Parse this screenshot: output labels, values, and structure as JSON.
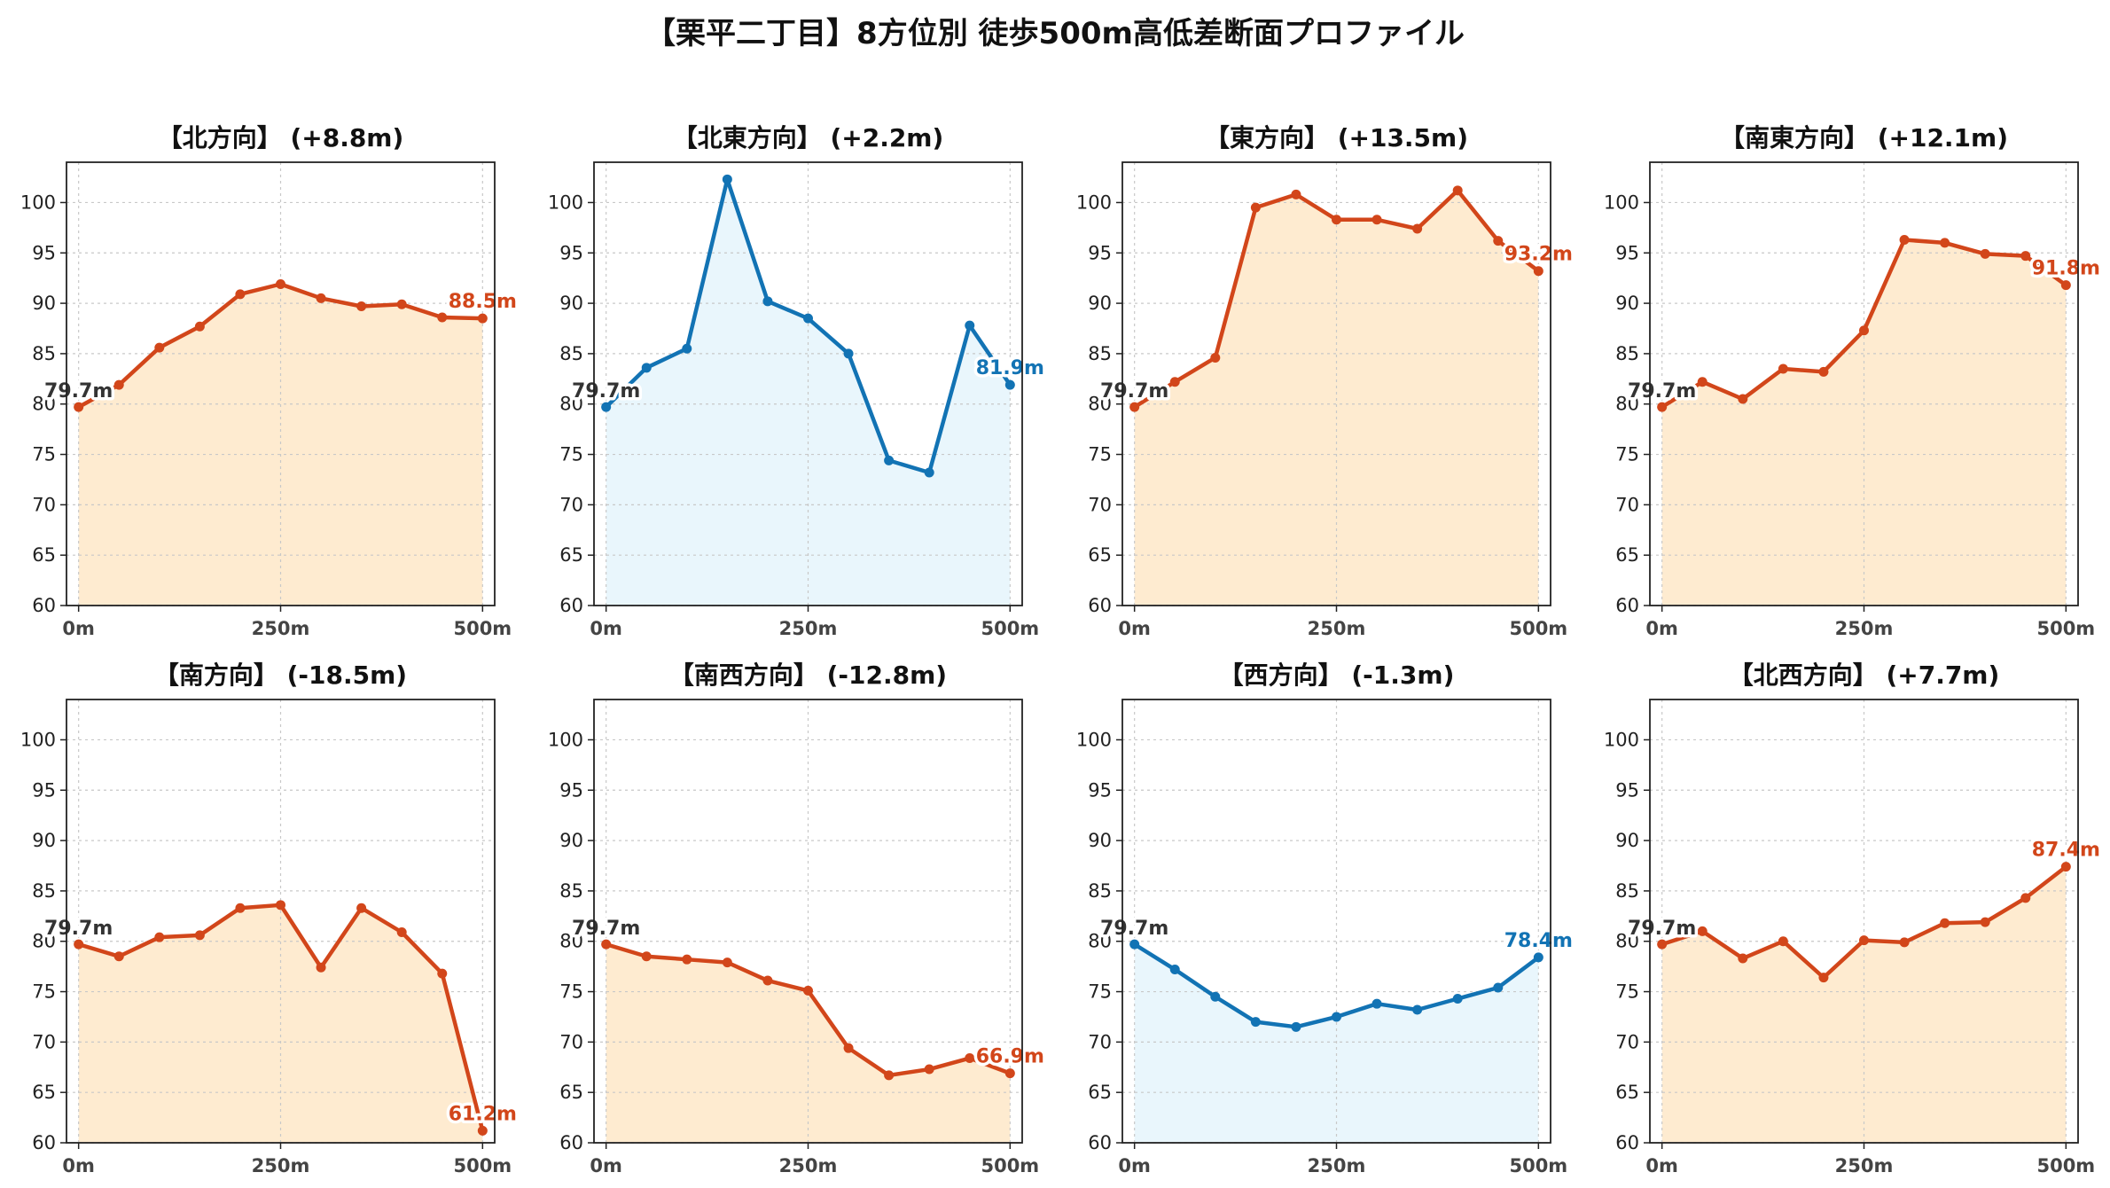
{
  "suptitle": "【栗平二丁目】8方位別 徒歩500m高低差断面プロファイル",
  "colors": {
    "up_line": "#d2461a",
    "up_fill": "#feebd0",
    "down_line": "#1273b4",
    "down_fill": "#e9f6fc",
    "grid": "#c8c8c8",
    "start_label": "#333333"
  },
  "chart_data": [
    {
      "type": "line",
      "title": "【北方向】 (+8.8m)",
      "trend": "up",
      "x": [
        0,
        50,
        100,
        150,
        200,
        250,
        300,
        350,
        400,
        450,
        500
      ],
      "values": [
        79.7,
        81.9,
        85.6,
        87.7,
        90.9,
        91.9,
        90.5,
        89.7,
        89.9,
        88.6,
        88.5
      ],
      "start_label": "79.7m",
      "end_label": "88.5m",
      "xticks": [
        "0m",
        "250m",
        "500m"
      ],
      "ylim": [
        60,
        104
      ],
      "yticks": [
        60,
        65,
        70,
        75,
        80,
        85,
        90,
        95,
        100
      ],
      "grid": true
    },
    {
      "type": "line",
      "title": "【北東方向】 (+2.2m)",
      "trend": "down",
      "x": [
        0,
        50,
        100,
        150,
        200,
        250,
        300,
        350,
        400,
        450,
        500
      ],
      "values": [
        79.7,
        83.6,
        85.5,
        102.3,
        90.2,
        88.5,
        85.0,
        74.4,
        73.2,
        87.8,
        81.9
      ],
      "start_label": "79.7m",
      "end_label": "81.9m",
      "xticks": [
        "0m",
        "250m",
        "500m"
      ],
      "ylim": [
        60,
        104
      ],
      "yticks": [
        60,
        65,
        70,
        75,
        80,
        85,
        90,
        95,
        100
      ],
      "grid": true
    },
    {
      "type": "line",
      "title": "【東方向】 (+13.5m)",
      "trend": "up",
      "x": [
        0,
        50,
        100,
        150,
        200,
        250,
        300,
        350,
        400,
        450,
        500
      ],
      "values": [
        79.7,
        82.2,
        84.6,
        99.5,
        100.8,
        98.3,
        98.3,
        97.4,
        101.2,
        96.2,
        93.2
      ],
      "start_label": "79.7m",
      "end_label": "93.2m",
      "xticks": [
        "0m",
        "250m",
        "500m"
      ],
      "ylim": [
        60,
        104
      ],
      "yticks": [
        60,
        65,
        70,
        75,
        80,
        85,
        90,
        95,
        100
      ],
      "grid": true
    },
    {
      "type": "line",
      "title": "【南東方向】 (+12.1m)",
      "trend": "up",
      "x": [
        0,
        50,
        100,
        150,
        200,
        250,
        300,
        350,
        400,
        450,
        500
      ],
      "values": [
        79.7,
        82.2,
        80.5,
        83.5,
        83.2,
        87.3,
        96.3,
        96.0,
        94.9,
        94.7,
        91.8
      ],
      "start_label": "79.7m",
      "end_label": "91.8m",
      "xticks": [
        "0m",
        "250m",
        "500m"
      ],
      "ylim": [
        60,
        104
      ],
      "yticks": [
        60,
        65,
        70,
        75,
        80,
        85,
        90,
        95,
        100
      ],
      "grid": true
    },
    {
      "type": "line",
      "title": "【南方向】 (-18.5m)",
      "trend": "up",
      "x": [
        0,
        50,
        100,
        150,
        200,
        250,
        300,
        350,
        400,
        450,
        500
      ],
      "values": [
        79.7,
        78.5,
        80.4,
        80.6,
        83.3,
        83.6,
        77.4,
        83.3,
        80.9,
        76.8,
        61.2
      ],
      "start_label": "79.7m",
      "end_label": "61.2m",
      "xticks": [
        "0m",
        "250m",
        "500m"
      ],
      "ylim": [
        60,
        104
      ],
      "yticks": [
        60,
        65,
        70,
        75,
        80,
        85,
        90,
        95,
        100
      ],
      "grid": true
    },
    {
      "type": "line",
      "title": "【南西方向】 (-12.8m)",
      "trend": "up",
      "x": [
        0,
        50,
        100,
        150,
        200,
        250,
        300,
        350,
        400,
        450,
        500
      ],
      "values": [
        79.7,
        78.5,
        78.2,
        77.9,
        76.1,
        75.1,
        69.4,
        66.7,
        67.3,
        68.4,
        66.9
      ],
      "start_label": "79.7m",
      "end_label": "66.9m",
      "xticks": [
        "0m",
        "250m",
        "500m"
      ],
      "ylim": [
        60,
        104
      ],
      "yticks": [
        60,
        65,
        70,
        75,
        80,
        85,
        90,
        95,
        100
      ],
      "grid": true
    },
    {
      "type": "line",
      "title": "【西方向】 (-1.3m)",
      "trend": "down",
      "x": [
        0,
        50,
        100,
        150,
        200,
        250,
        300,
        350,
        400,
        450,
        500
      ],
      "values": [
        79.7,
        77.2,
        74.5,
        72.0,
        71.5,
        72.5,
        73.8,
        73.2,
        74.3,
        75.4,
        78.4
      ],
      "start_label": "79.7m",
      "end_label": "78.4m",
      "xticks": [
        "0m",
        "250m",
        "500m"
      ],
      "ylim": [
        60,
        104
      ],
      "yticks": [
        60,
        65,
        70,
        75,
        80,
        85,
        90,
        95,
        100
      ],
      "grid": true
    },
    {
      "type": "line",
      "title": "【北西方向】 (+7.7m)",
      "trend": "up",
      "x": [
        0,
        50,
        100,
        150,
        200,
        250,
        300,
        350,
        400,
        450,
        500
      ],
      "values": [
        79.7,
        81.0,
        78.3,
        80.0,
        76.4,
        80.1,
        79.9,
        81.8,
        81.9,
        84.3,
        87.4
      ],
      "start_label": "79.7m",
      "end_label": "87.4m",
      "xticks": [
        "0m",
        "250m",
        "500m"
      ],
      "ylim": [
        60,
        104
      ],
      "yticks": [
        60,
        65,
        70,
        75,
        80,
        85,
        90,
        95,
        100
      ],
      "grid": true
    }
  ]
}
